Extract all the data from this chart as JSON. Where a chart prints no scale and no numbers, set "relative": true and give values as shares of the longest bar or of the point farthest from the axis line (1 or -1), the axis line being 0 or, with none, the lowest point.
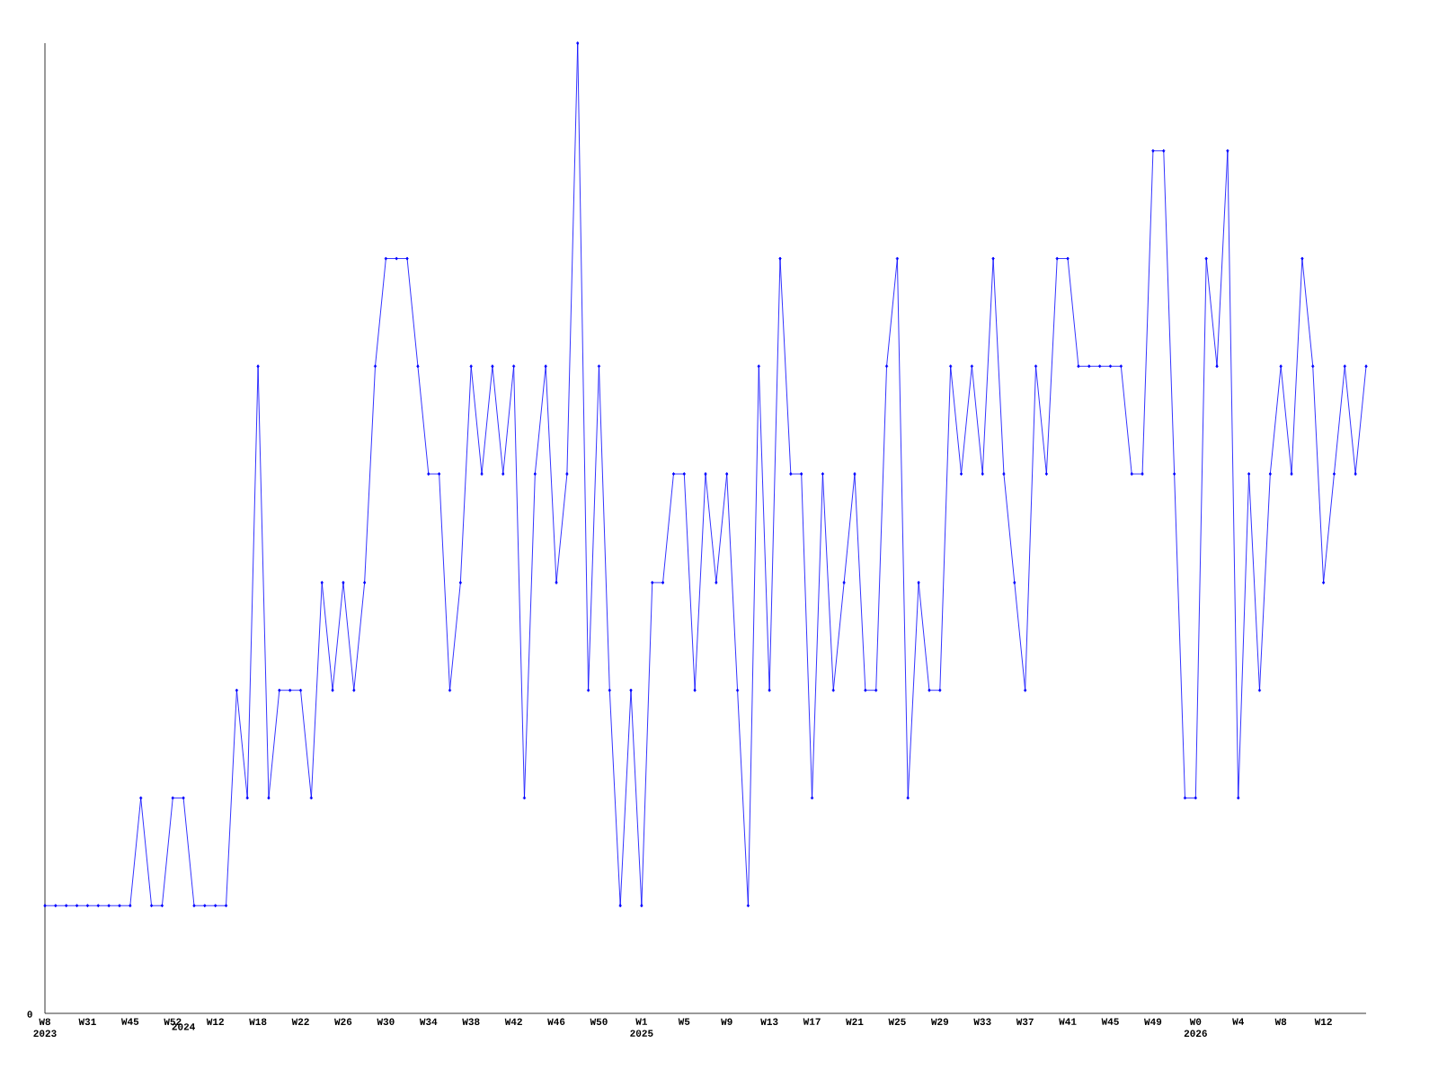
{
  "chart_data": {
    "type": "line",
    "relative": true,
    "marker": "diamond",
    "color": "#0000ff",
    "annotations": [
      "0"
    ],
    "categories": [
      "W8 2023",
      null,
      null,
      null,
      "W31",
      null,
      null,
      null,
      "W45",
      null,
      null,
      null,
      "W52",
      "2024",
      null,
      null,
      "W12",
      null,
      null,
      null,
      "W18",
      null,
      null,
      null,
      "W22",
      null,
      null,
      null,
      "W26",
      null,
      null,
      null,
      "W30",
      null,
      null,
      null,
      "W34",
      null,
      null,
      null,
      "W38",
      null,
      null,
      null,
      "W42",
      null,
      null,
      null,
      "W46",
      null,
      null,
      null,
      "W50",
      null,
      null,
      null,
      "W1 2025",
      null,
      null,
      null,
      "W5",
      null,
      null,
      null,
      "W9",
      null,
      null,
      null,
      "W13",
      null,
      null,
      null,
      "W17",
      null,
      null,
      null,
      "W21",
      null,
      null,
      null,
      "W25",
      null,
      null,
      null,
      "W29",
      null,
      null,
      null,
      "W33",
      null,
      null,
      null,
      "W37",
      null,
      null,
      null,
      "W41",
      null,
      null,
      null,
      "W45",
      null,
      null,
      null,
      "W49",
      null,
      null,
      null,
      "W0 2026",
      null,
      null,
      null,
      "W4",
      null,
      null,
      null,
      "W8",
      null,
      null,
      null,
      "W12",
      null,
      null,
      null,
      null
    ],
    "values": [
      0.111,
      0.111,
      0.111,
      0.111,
      0.111,
      0.111,
      0.111,
      0.111,
      0.111,
      0.222,
      0.111,
      0.111,
      0.222,
      0.222,
      0.111,
      0.111,
      0.111,
      0.111,
      0.333,
      0.222,
      0.667,
      0.222,
      0.333,
      0.333,
      0.333,
      0.222,
      0.444,
      0.333,
      0.444,
      0.333,
      0.444,
      0.667,
      0.778,
      0.778,
      0.778,
      0.667,
      0.556,
      0.556,
      0.333,
      0.444,
      0.667,
      0.556,
      0.667,
      0.556,
      0.667,
      0.222,
      0.556,
      0.667,
      0.444,
      0.556,
      1,
      0.333,
      0.667,
      0.333,
      0.111,
      0.333,
      0.111,
      0.444,
      0.444,
      0.556,
      0.556,
      0.333,
      0.556,
      0.444,
      0.556,
      0.333,
      0.111,
      0.667,
      0.333,
      0.778,
      0.556,
      0.556,
      0.222,
      0.556,
      0.333,
      0.444,
      0.556,
      0.333,
      0.333,
      0.667,
      0.778,
      0.222,
      0.444,
      0.333,
      0.333,
      0.667,
      0.556,
      0.667,
      0.556,
      0.778,
      0.556,
      0.444,
      0.333,
      0.667,
      0.556,
      0.778,
      0.778,
      0.667,
      0.667,
      0.667,
      0.667,
      0.667,
      0.556,
      0.556,
      0.889,
      0.889,
      0.556,
      0.222,
      0.222,
      0.778,
      0.667,
      0.889,
      0.222,
      0.556,
      0.333,
      0.556,
      0.667,
      0.556,
      0.778,
      0.667,
      0.444,
      0.556,
      0.667,
      0.556,
      0.667
    ]
  }
}
